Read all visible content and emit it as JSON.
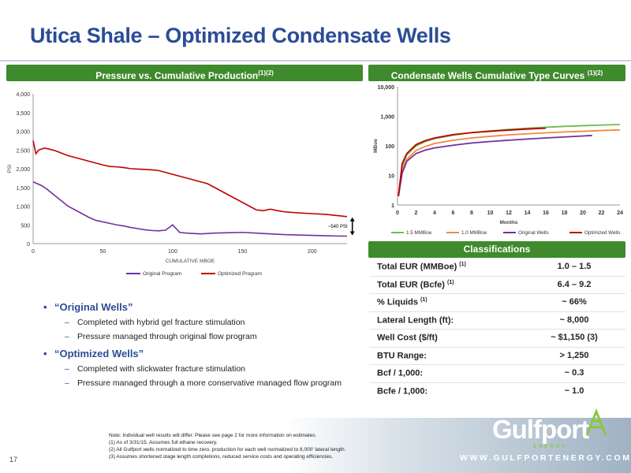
{
  "page": {
    "title": "Utica Shale – Optimized Condensate Wells",
    "page_number": "17",
    "website": "WWW.GULFPORTENERGY.COM",
    "logo_text": "Gulfport",
    "logo_subtext": "ENERGY",
    "colors": {
      "title": "#2b4d96",
      "banner": "#3f8a2c",
      "original": "#7030a0",
      "optimized": "#c00000",
      "orange": "#f08a3c",
      "green": "#6abf4b"
    }
  },
  "left_panel": {
    "banner_text": "Pressure vs. Cumulative Production",
    "banner_sup": "(1)(2)",
    "annotation": "~540 PSI"
  },
  "right_panel": {
    "banner_text": "Condensate Wells Cumulative Type Curves ",
    "banner_sup": "(1)(2)"
  },
  "classifications": {
    "banner_text": "Classifications",
    "rows": [
      {
        "label": "Total EUR (MMBoe)",
        "sup": "(1)",
        "value": "1.0 – 1.5"
      },
      {
        "label": "Total EUR (Bcfe)",
        "sup": "(1)",
        "value": "6.4 – 9.2"
      },
      {
        "label": "% Liquids",
        "sup": "(1)",
        "value": "~ 66%"
      },
      {
        "label": "Lateral Length (ft):",
        "sup": "",
        "value": "~ 8,000"
      },
      {
        "label": "Well Cost ($/ft)",
        "sup": "",
        "value": "~ $1,150 (3)"
      },
      {
        "label": "BTU Range:",
        "sup": "",
        "value": "> 1,250"
      },
      {
        "label": "Bcf / 1,000:",
        "sup": "",
        "value": "~ 0.3"
      },
      {
        "label": "Bcfe / 1,000:",
        "sup": "",
        "value": "~ 1.0"
      }
    ]
  },
  "bullets": [
    {
      "heading": "“Original Wells”",
      "items": [
        "Completed with hybrid gel fracture stimulation",
        "Pressure managed through original flow program"
      ]
    },
    {
      "heading": "“Optimized Wells”",
      "items": [
        "Completed with slickwater fracture stimulation",
        "Pressure managed through a more conservative managed flow program"
      ]
    }
  ],
  "notes": [
    "Note: Individual well results will differ. Please see page 2 for more information on estimates.",
    "(1)      As of 3/31/15. Assumes full ethane recovery.",
    "(2)      All Gulfport wells normalized to time zero, production for each well normalized to 8,000' lateral length.",
    "(3)      Assumes shortened stage length completions, reduced service costs and operating efficiencies."
  ],
  "chart_data": [
    {
      "type": "line",
      "xlabel": "CUMULATIVE MBOE",
      "ylabel": "PSI",
      "xlim": [
        0,
        225
      ],
      "ylim": [
        0,
        4000
      ],
      "xticks": [
        0,
        50,
        100,
        150,
        200
      ],
      "xtick_labels": [
        "0",
        "50",
        "100",
        "150",
        "200"
      ],
      "yticks": [
        0,
        500,
        1000,
        1500,
        2000,
        2500,
        3000,
        3500,
        4000
      ],
      "ytick_labels": [
        "0",
        "500",
        "1,000",
        "1,500",
        "2,000",
        "2,500",
        "3,000",
        "3,500",
        "4,000"
      ],
      "legend": "bottom",
      "series": [
        {
          "name": "Original Program",
          "color": "#7030a0",
          "x": [
            0,
            3,
            6,
            10,
            15,
            20,
            25,
            30,
            35,
            40,
            45,
            50,
            55,
            60,
            65,
            70,
            75,
            80,
            85,
            90,
            95,
            100,
            105,
            110,
            115,
            120,
            125,
            130,
            140,
            150,
            160,
            170,
            180,
            190,
            200,
            210,
            220,
            225
          ],
          "y": [
            1650,
            1600,
            1550,
            1450,
            1300,
            1150,
            1000,
            900,
            800,
            700,
            620,
            580,
            540,
            500,
            470,
            430,
            400,
            370,
            350,
            340,
            360,
            500,
            300,
            280,
            270,
            260,
            270,
            280,
            290,
            300,
            280,
            260,
            240,
            230,
            220,
            210,
            200,
            200
          ]
        },
        {
          "name": "Optimized Program",
          "color": "#c00000",
          "x": [
            0,
            2,
            4,
            8,
            12,
            16,
            20,
            25,
            30,
            35,
            40,
            45,
            50,
            55,
            60,
            65,
            70,
            75,
            80,
            85,
            90,
            95,
            100,
            105,
            110,
            115,
            120,
            125,
            130,
            135,
            140,
            145,
            150,
            155,
            160,
            165,
            170,
            175,
            180,
            190,
            200,
            210,
            215,
            220,
            225
          ],
          "y": [
            2750,
            2400,
            2500,
            2550,
            2520,
            2480,
            2420,
            2350,
            2300,
            2250,
            2200,
            2150,
            2100,
            2060,
            2050,
            2030,
            2000,
            1990,
            1980,
            1970,
            1950,
            1900,
            1850,
            1800,
            1750,
            1700,
            1650,
            1600,
            1500,
            1400,
            1300,
            1200,
            1100,
            1000,
            900,
            880,
            920,
            880,
            850,
            820,
            800,
            780,
            760,
            740,
            720
          ]
        }
      ]
    },
    {
      "type": "line",
      "xlabel": "Months",
      "ylabel": "MBoe",
      "yscale": "log",
      "xlim": [
        0,
        24
      ],
      "ylim": [
        1,
        10000
      ],
      "xticks": [
        0,
        2,
        4,
        6,
        8,
        10,
        12,
        14,
        16,
        18,
        20,
        22,
        24
      ],
      "xtick_labels": [
        "0",
        "2",
        "4",
        "6",
        "8",
        "10",
        "12",
        "14",
        "16",
        "18",
        "20",
        "22",
        "24"
      ],
      "yticks": [
        1,
        10,
        100,
        1000,
        10000
      ],
      "ytick_labels": [
        "1",
        "10",
        "100",
        "1,000",
        "10,000"
      ],
      "legend": "bottom",
      "series": [
        {
          "name": "1.5 MMBoe",
          "color": "#6abf4b",
          "x": [
            0.1,
            0.5,
            1,
            2,
            3,
            4,
            6,
            8,
            10,
            12,
            14,
            16,
            18,
            20,
            22,
            24
          ],
          "y": [
            2,
            20,
            50,
            100,
            140,
            175,
            230,
            280,
            320,
            360,
            395,
            425,
            455,
            480,
            505,
            530
          ]
        },
        {
          "name": "1.0 MMBoe",
          "color": "#f08a3c",
          "x": [
            0.1,
            0.5,
            1,
            2,
            3,
            4,
            6,
            8,
            10,
            12,
            14,
            16,
            18,
            20,
            22,
            24
          ],
          "y": [
            2,
            15,
            35,
            70,
            95,
            120,
            155,
            185,
            210,
            235,
            255,
            275,
            295,
            310,
            330,
            345
          ]
        },
        {
          "name": "Original Wells",
          "color": "#7030a0",
          "x": [
            0.1,
            0.5,
            1,
            2,
            3,
            4,
            6,
            8,
            10,
            12,
            14,
            16,
            18,
            20,
            21
          ],
          "y": [
            2,
            12,
            30,
            55,
            72,
            85,
            105,
            125,
            140,
            155,
            170,
            185,
            200,
            215,
            225
          ]
        },
        {
          "name": "Optimized Wells",
          "color": "#c00000",
          "x": [
            0.1,
            0.5,
            1,
            2,
            3,
            4,
            6,
            8,
            10,
            12,
            14,
            16
          ],
          "y": [
            2,
            25,
            55,
            110,
            150,
            185,
            240,
            280,
            310,
            340,
            370,
            395
          ]
        }
      ]
    }
  ]
}
